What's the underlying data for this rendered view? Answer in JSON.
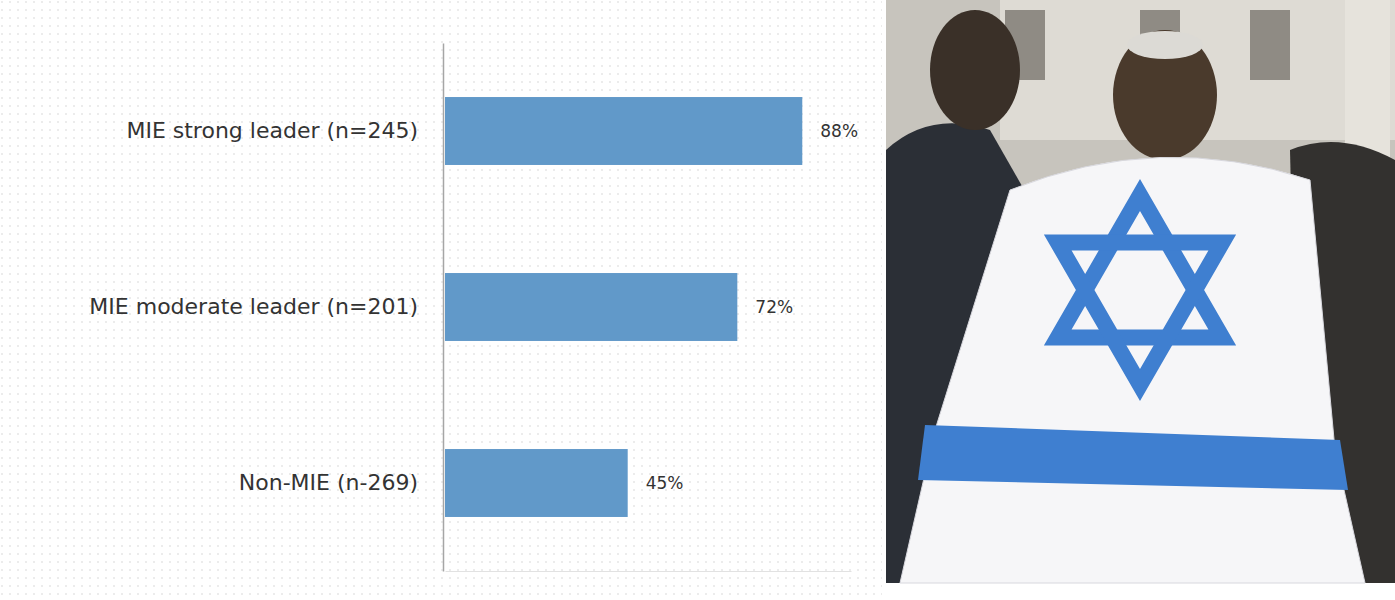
{
  "chart_data": {
    "type": "bar",
    "orientation": "horizontal",
    "categories": [
      "MIE strong leader (n=245)",
      "MIE moderate leader (n=201)",
      "Non-MIE (n-269)"
    ],
    "values": [
      88,
      72,
      45
    ],
    "value_labels": [
      "88%",
      "72%",
      "45%"
    ],
    "color": "#6199c9",
    "xlim": [
      0,
      100
    ],
    "data_labels": true,
    "tick_labels": "y",
    "grid": false
  }
}
